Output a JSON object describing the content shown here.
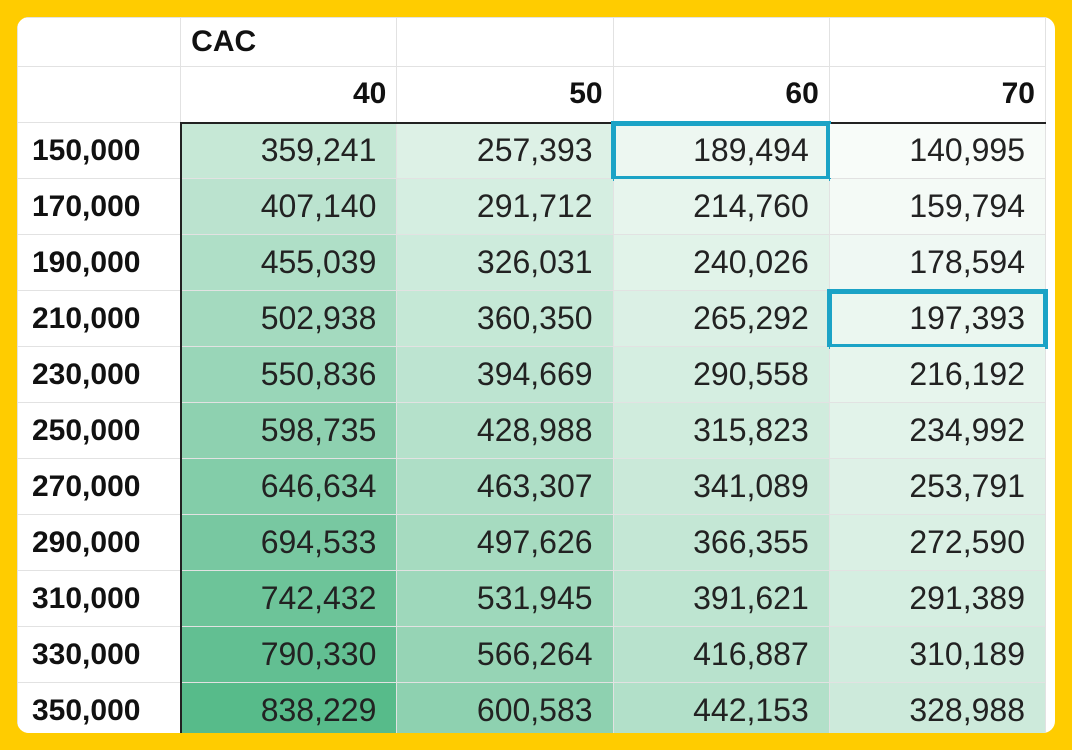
{
  "table": {
    "title": "CAC",
    "columns": [
      "40",
      "50",
      "60",
      "70"
    ],
    "rows": [
      {
        "label": "150,000",
        "values": [
          "359,241",
          "257,393",
          "189,494",
          "140,995"
        ]
      },
      {
        "label": "170,000",
        "values": [
          "407,140",
          "291,712",
          "214,760",
          "159,794"
        ]
      },
      {
        "label": "190,000",
        "values": [
          "455,039",
          "326,031",
          "240,026",
          "178,594"
        ]
      },
      {
        "label": "210,000",
        "values": [
          "502,938",
          "360,350",
          "265,292",
          "197,393"
        ]
      },
      {
        "label": "230,000",
        "values": [
          "550,836",
          "394,669",
          "290,558",
          "216,192"
        ]
      },
      {
        "label": "250,000",
        "values": [
          "598,735",
          "428,988",
          "315,823",
          "234,992"
        ]
      },
      {
        "label": "270,000",
        "values": [
          "646,634",
          "463,307",
          "341,089",
          "253,791"
        ]
      },
      {
        "label": "290,000",
        "values": [
          "694,533",
          "497,626",
          "366,355",
          "272,590"
        ]
      },
      {
        "label": "310,000",
        "values": [
          "742,432",
          "531,945",
          "391,621",
          "291,389"
        ]
      },
      {
        "label": "330,000",
        "values": [
          "790,330",
          "566,264",
          "416,887",
          "310,189"
        ]
      },
      {
        "label": "350,000",
        "values": [
          "838,229",
          "600,583",
          "442,153",
          "328,988"
        ]
      }
    ],
    "highlighted_cells": [
      {
        "row": 0,
        "col": 2
      },
      {
        "row": 3,
        "col": 3
      }
    ]
  },
  "colors": {
    "frame": "#FFCC00",
    "highlight_border": "#1BA3C6",
    "heat_low": "#F8FCF9",
    "heat_high": "#57BB8A"
  }
}
